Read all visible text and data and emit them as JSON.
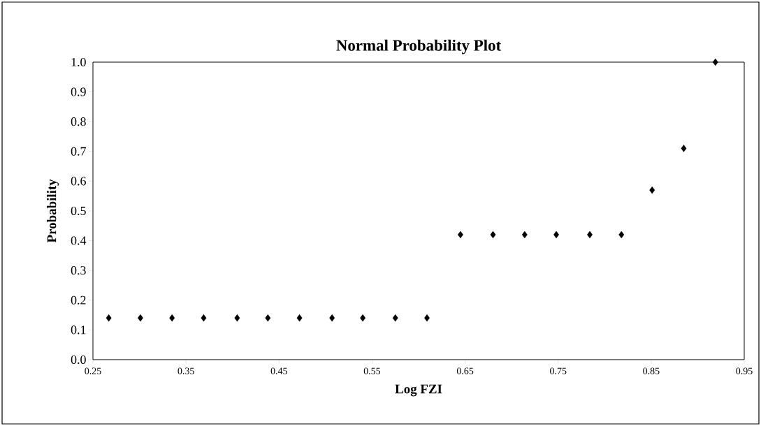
{
  "chart_data": {
    "type": "scatter",
    "title": "Normal Probability Plot",
    "xlabel": "Log FZI",
    "ylabel": "Probability",
    "x": [
      0.267,
      0.301,
      0.335,
      0.369,
      0.405,
      0.438,
      0.472,
      0.507,
      0.54,
      0.575,
      0.609,
      0.645,
      0.68,
      0.714,
      0.748,
      0.784,
      0.818,
      0.851,
      0.885,
      0.919
    ],
    "values": [
      0.14,
      0.14,
      0.14,
      0.14,
      0.14,
      0.14,
      0.14,
      0.14,
      0.14,
      0.14,
      0.14,
      0.42,
      0.42,
      0.42,
      0.42,
      0.42,
      0.42,
      0.57,
      0.71,
      1.0
    ],
    "color": "#000000",
    "marker": "diamond",
    "xlim": [
      0.25,
      0.95
    ],
    "ylim": [
      0,
      1
    ],
    "xticks": [
      0.25,
      0.35,
      0.45,
      0.55,
      0.65,
      0.75,
      0.85,
      0.95
    ],
    "yticks": [
      {
        "value": 0,
        "label": "0.0"
      },
      {
        "value": 0.1,
        "label": "0.1"
      },
      {
        "value": 0.2,
        "label": "0.2"
      },
      {
        "value": 0.3,
        "label": "0.3"
      },
      {
        "value": 0.4,
        "label": "0.4"
      },
      {
        "value": 0.5,
        "label": "0.5"
      },
      {
        "value": 0.6,
        "label": "0.6"
      },
      {
        "value": 0.7,
        "label": "0.7"
      },
      {
        "value": 0.8,
        "label": "0.8"
      },
      {
        "value": 0.9,
        "label": "0.9"
      },
      {
        "value": 1,
        "label": "1.0"
      }
    ]
  }
}
